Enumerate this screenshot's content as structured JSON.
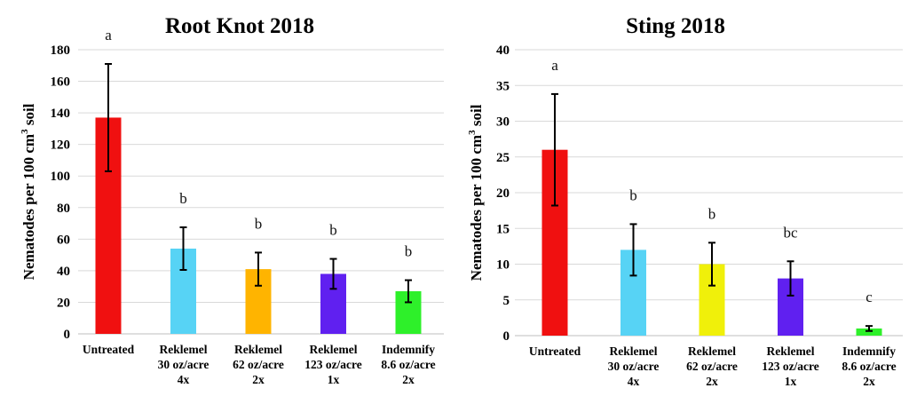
{
  "chart_data": [
    {
      "type": "bar",
      "title": "Root Knot 2018",
      "ylabel": "Nematodes per 100 cm",
      "ylabel_superscript": "3",
      "ylabel_suffix": " soil",
      "xlabel": "",
      "ylim": [
        0,
        180
      ],
      "yticks": [
        0,
        20,
        40,
        60,
        80,
        100,
        120,
        140,
        160,
        180
      ],
      "grid": true,
      "categories": [
        [
          "Untreated"
        ],
        [
          "Reklemel",
          "30 oz/acre",
          "4x"
        ],
        [
          "Reklemel",
          "62 oz/acre",
          "2x"
        ],
        [
          "Reklemel",
          "123 oz/acre",
          "1x"
        ],
        [
          "Indemnify",
          "8.6 oz/acre",
          "2x"
        ]
      ],
      "values": [
        137,
        54,
        41,
        38,
        27
      ],
      "errors": [
        34,
        13.5,
        10.5,
        9.5,
        7
      ],
      "significance": [
        "a",
        "b",
        "b",
        "b",
        "b"
      ],
      "colors": [
        "#f01010",
        "#57d3f5",
        "#ffb400",
        "#6020f0",
        "#2ef02a"
      ]
    },
    {
      "type": "bar",
      "title": "Sting 2018",
      "ylabel": "Nematodes per 100 cm",
      "ylabel_superscript": "3",
      "ylabel_suffix": " soil",
      "xlabel": "",
      "ylim": [
        0,
        40
      ],
      "yticks": [
        0,
        5,
        10,
        15,
        20,
        25,
        30,
        35,
        40
      ],
      "grid": true,
      "categories": [
        [
          "Untreated"
        ],
        [
          "Reklemel",
          "30 oz/acre",
          "4x"
        ],
        [
          "Reklemel",
          "62 oz/acre",
          "2x"
        ],
        [
          "Reklemel",
          "123 oz/acre",
          "1x"
        ],
        [
          "Indemnify",
          "8.6 oz/acre",
          "2x"
        ]
      ],
      "values": [
        26,
        12,
        10,
        8,
        1
      ],
      "errors": [
        7.8,
        3.6,
        3,
        2.4,
        0.35
      ],
      "significance": [
        "a",
        "b",
        "b",
        "bc",
        "c"
      ],
      "colors": [
        "#f01010",
        "#57d3f5",
        "#f0f00a",
        "#6020f0",
        "#2ef02a"
      ]
    }
  ]
}
